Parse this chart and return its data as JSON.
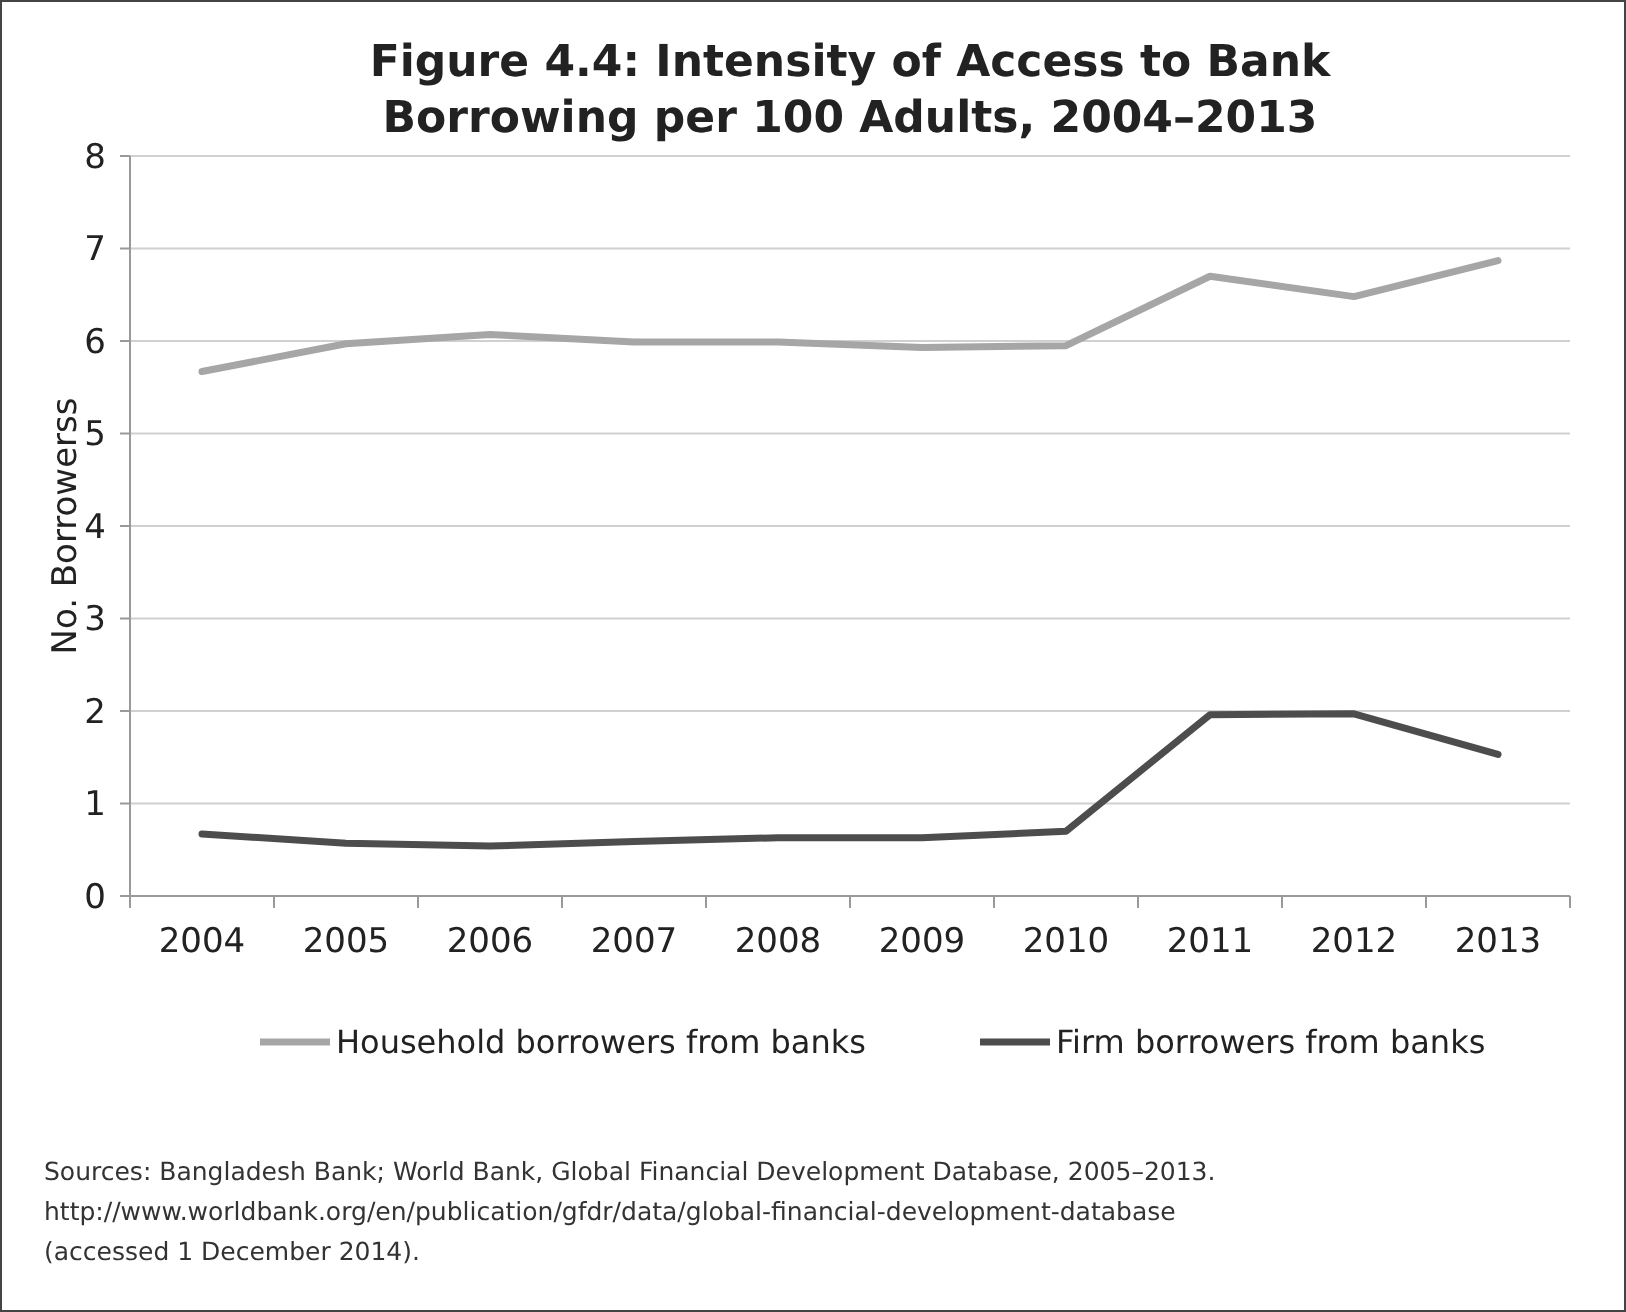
{
  "chart_data": {
    "type": "line",
    "title": "Figure 4.4: Intensity of Access to Bank Borrowing per 100 Adults, 2004–2013",
    "ylabel": "No. Borrowerss",
    "categories": [
      "2004",
      "2005",
      "2006",
      "2007",
      "2008",
      "2009",
      "2010",
      "2011",
      "2012",
      "2013"
    ],
    "series": [
      {
        "name": "Household borrowers from banks",
        "color": "#a6a6a6",
        "values": [
          5.67,
          5.97,
          6.07,
          5.99,
          5.99,
          5.93,
          5.95,
          6.7,
          6.48,
          6.87
        ]
      },
      {
        "name": "Firm borrowers from banks",
        "color": "#4d4d4d",
        "values": [
          0.67,
          0.57,
          0.54,
          0.59,
          0.63,
          0.63,
          0.7,
          1.96,
          1.97,
          1.53
        ]
      }
    ],
    "ylim": [
      0,
      8
    ],
    "yticks": [
      0,
      1,
      2,
      3,
      4,
      5,
      6,
      7,
      8
    ],
    "grid": "y",
    "legend": "bottom",
    "marker": "none",
    "line_style": "solid",
    "annotations": [
      "Sources: Bangladesh Bank; World Bank, Global Financial Development Database, 2005–2013.",
      "http://www.worldbank.org/en/publication/gfdr/data/global-financial-development-database",
      "(accessed 1 December 2014)."
    ]
  }
}
